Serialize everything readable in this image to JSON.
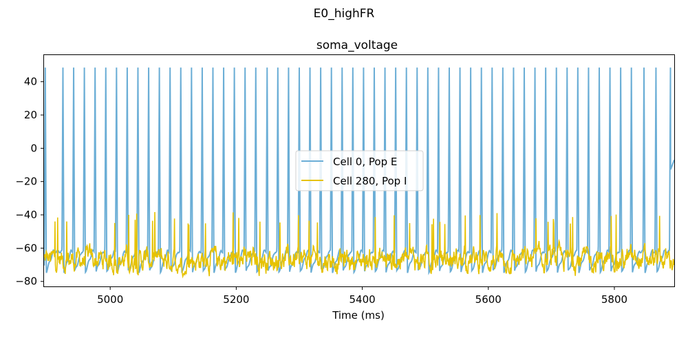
{
  "figure": {
    "suptitle": "E0_highFR"
  },
  "chart_data": {
    "type": "line",
    "title": "soma_voltage",
    "xlabel": "Time (ms)",
    "ylabel": "",
    "xlim": [
      4895,
      5895
    ],
    "ylim": [
      -83,
      56
    ],
    "xticks": [
      5000,
      5200,
      5400,
      5600,
      5800
    ],
    "xtick_labels": [
      "5000",
      "5200",
      "5400",
      "5600",
      "5800"
    ],
    "yticks": [
      40,
      20,
      0,
      -20,
      -40,
      -60,
      -80
    ],
    "ytick_labels": [
      "40",
      "20",
      "0",
      "−20",
      "−40",
      "−60",
      "−80"
    ],
    "grid": false,
    "legend_position": "center",
    "series": [
      {
        "name": "Cell 0, Pop E",
        "color": "#6baed6",
        "kind": "periodic-spike-train",
        "spike_times": [
          4897,
          4925,
          4942,
          4959,
          4976,
          4993,
          5010,
          5027,
          5044,
          5061,
          5078,
          5095,
          5112,
          5129,
          5146,
          5163,
          5180,
          5197,
          5214,
          5231,
          5249,
          5266,
          5283,
          5300,
          5317,
          5334,
          5351,
          5368,
          5385,
          5402,
          5419,
          5436,
          5453,
          5470,
          5487,
          5504,
          5521,
          5538,
          5555,
          5572,
          5589,
          5606,
          5623,
          5640,
          5657,
          5674,
          5691,
          5708,
          5725,
          5742,
          5759,
          5776,
          5793,
          5810,
          5827,
          5847,
          5866,
          5889
        ],
        "peak": 48.5,
        "trough": -76,
        "final_value": -7
      },
      {
        "name": "Cell 280, Pop I",
        "color": "#e6c200",
        "kind": "noisy-subthreshold",
        "mean": -67,
        "min": -77,
        "max": -46
      }
    ]
  }
}
